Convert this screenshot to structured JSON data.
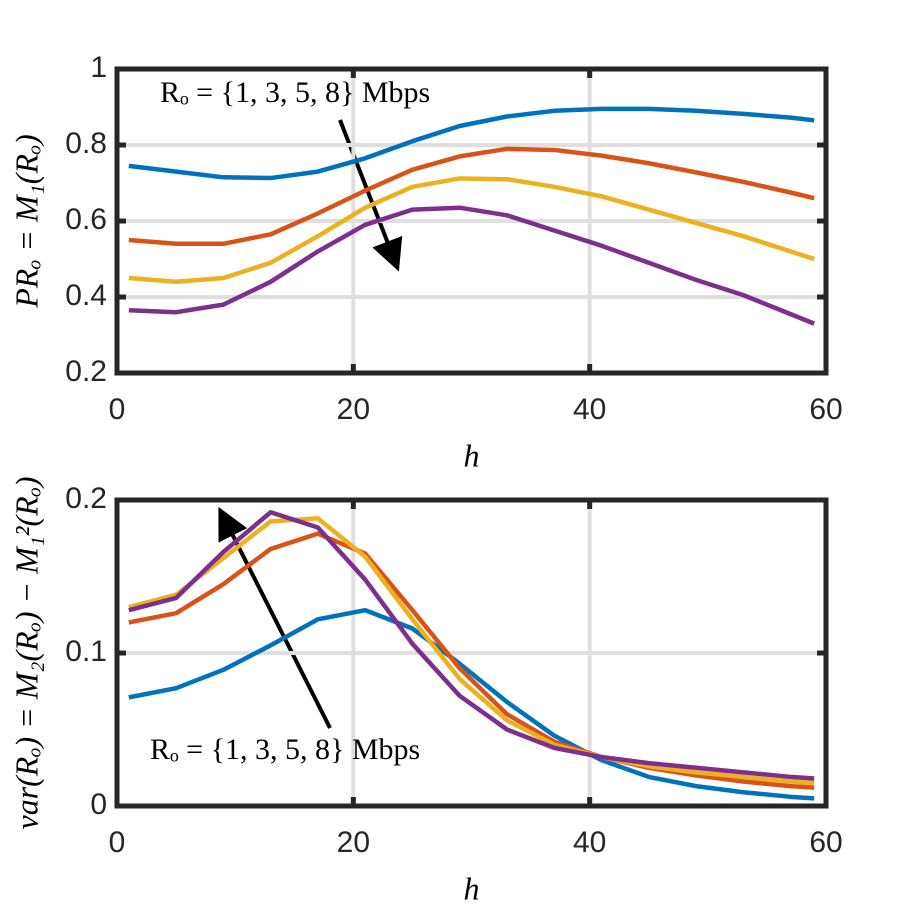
{
  "chart_data": [
    {
      "type": "line",
      "xlabel": "h",
      "ylabel": "PRₒ = M₁(Rₒ)",
      "annotation": "Rₒ = {1, 3, 5, 8} Mbps",
      "x": [
        1,
        5,
        9,
        13,
        17,
        21,
        25,
        29,
        33,
        37,
        41,
        45,
        49,
        53,
        57,
        59
      ],
      "series": [
        {
          "color": "#0072bd",
          "values": [
            0.745,
            0.73,
            0.715,
            0.713,
            0.73,
            0.765,
            0.81,
            0.85,
            0.875,
            0.89,
            0.895,
            0.895,
            0.89,
            0.882,
            0.872,
            0.865
          ]
        },
        {
          "color": "#d95319",
          "values": [
            0.55,
            0.54,
            0.54,
            0.565,
            0.62,
            0.68,
            0.735,
            0.77,
            0.79,
            0.787,
            0.772,
            0.752,
            0.728,
            0.703,
            0.675,
            0.66
          ]
        },
        {
          "color": "#edb120",
          "values": [
            0.45,
            0.44,
            0.45,
            0.49,
            0.56,
            0.635,
            0.69,
            0.712,
            0.71,
            0.69,
            0.665,
            0.63,
            0.595,
            0.56,
            0.52,
            0.5
          ]
        },
        {
          "color": "#7e2f8e",
          "values": [
            0.365,
            0.36,
            0.38,
            0.44,
            0.52,
            0.59,
            0.63,
            0.635,
            0.615,
            0.575,
            0.535,
            0.49,
            0.445,
            0.405,
            0.355,
            0.33
          ]
        }
      ],
      "xlim": [
        0,
        60
      ],
      "xticks": [
        0,
        20,
        40,
        60
      ],
      "ylim": [
        0.2,
        1
      ],
      "yticks": [
        0.2,
        0.4,
        0.6,
        0.8,
        1
      ],
      "grid": true
    },
    {
      "type": "line",
      "xlabel": "h",
      "ylabel": "var(Rₒ) = M₂(Rₒ) − M₁²(Rₒ)",
      "annotation": "Rₒ = {1, 3, 5, 8} Mbps",
      "x": [
        1,
        5,
        9,
        13,
        17,
        21,
        25,
        29,
        33,
        37,
        41,
        45,
        49,
        53,
        57,
        59
      ],
      "series": [
        {
          "color": "#0072bd",
          "values": [
            0.071,
            0.077,
            0.089,
            0.105,
            0.122,
            0.128,
            0.116,
            0.093,
            0.068,
            0.046,
            0.03,
            0.019,
            0.013,
            0.009,
            0.006,
            0.005
          ]
        },
        {
          "color": "#d95319",
          "values": [
            0.12,
            0.126,
            0.145,
            0.168,
            0.178,
            0.165,
            0.128,
            0.09,
            0.06,
            0.042,
            0.032,
            0.025,
            0.02,
            0.016,
            0.013,
            0.012
          ]
        },
        {
          "color": "#edb120",
          "values": [
            0.13,
            0.138,
            0.162,
            0.186,
            0.188,
            0.163,
            0.122,
            0.083,
            0.056,
            0.04,
            0.032,
            0.026,
            0.022,
            0.019,
            0.016,
            0.015
          ]
        },
        {
          "color": "#7e2f8e",
          "values": [
            0.128,
            0.136,
            0.166,
            0.192,
            0.182,
            0.148,
            0.106,
            0.072,
            0.05,
            0.038,
            0.032,
            0.028,
            0.025,
            0.022,
            0.019,
            0.018
          ]
        }
      ],
      "xlim": [
        0,
        60
      ],
      "xticks": [
        0,
        20,
        40,
        60
      ],
      "ylim": [
        0,
        0.2
      ],
      "yticks": [
        0,
        0.1,
        0.2
      ],
      "grid": true
    }
  ]
}
